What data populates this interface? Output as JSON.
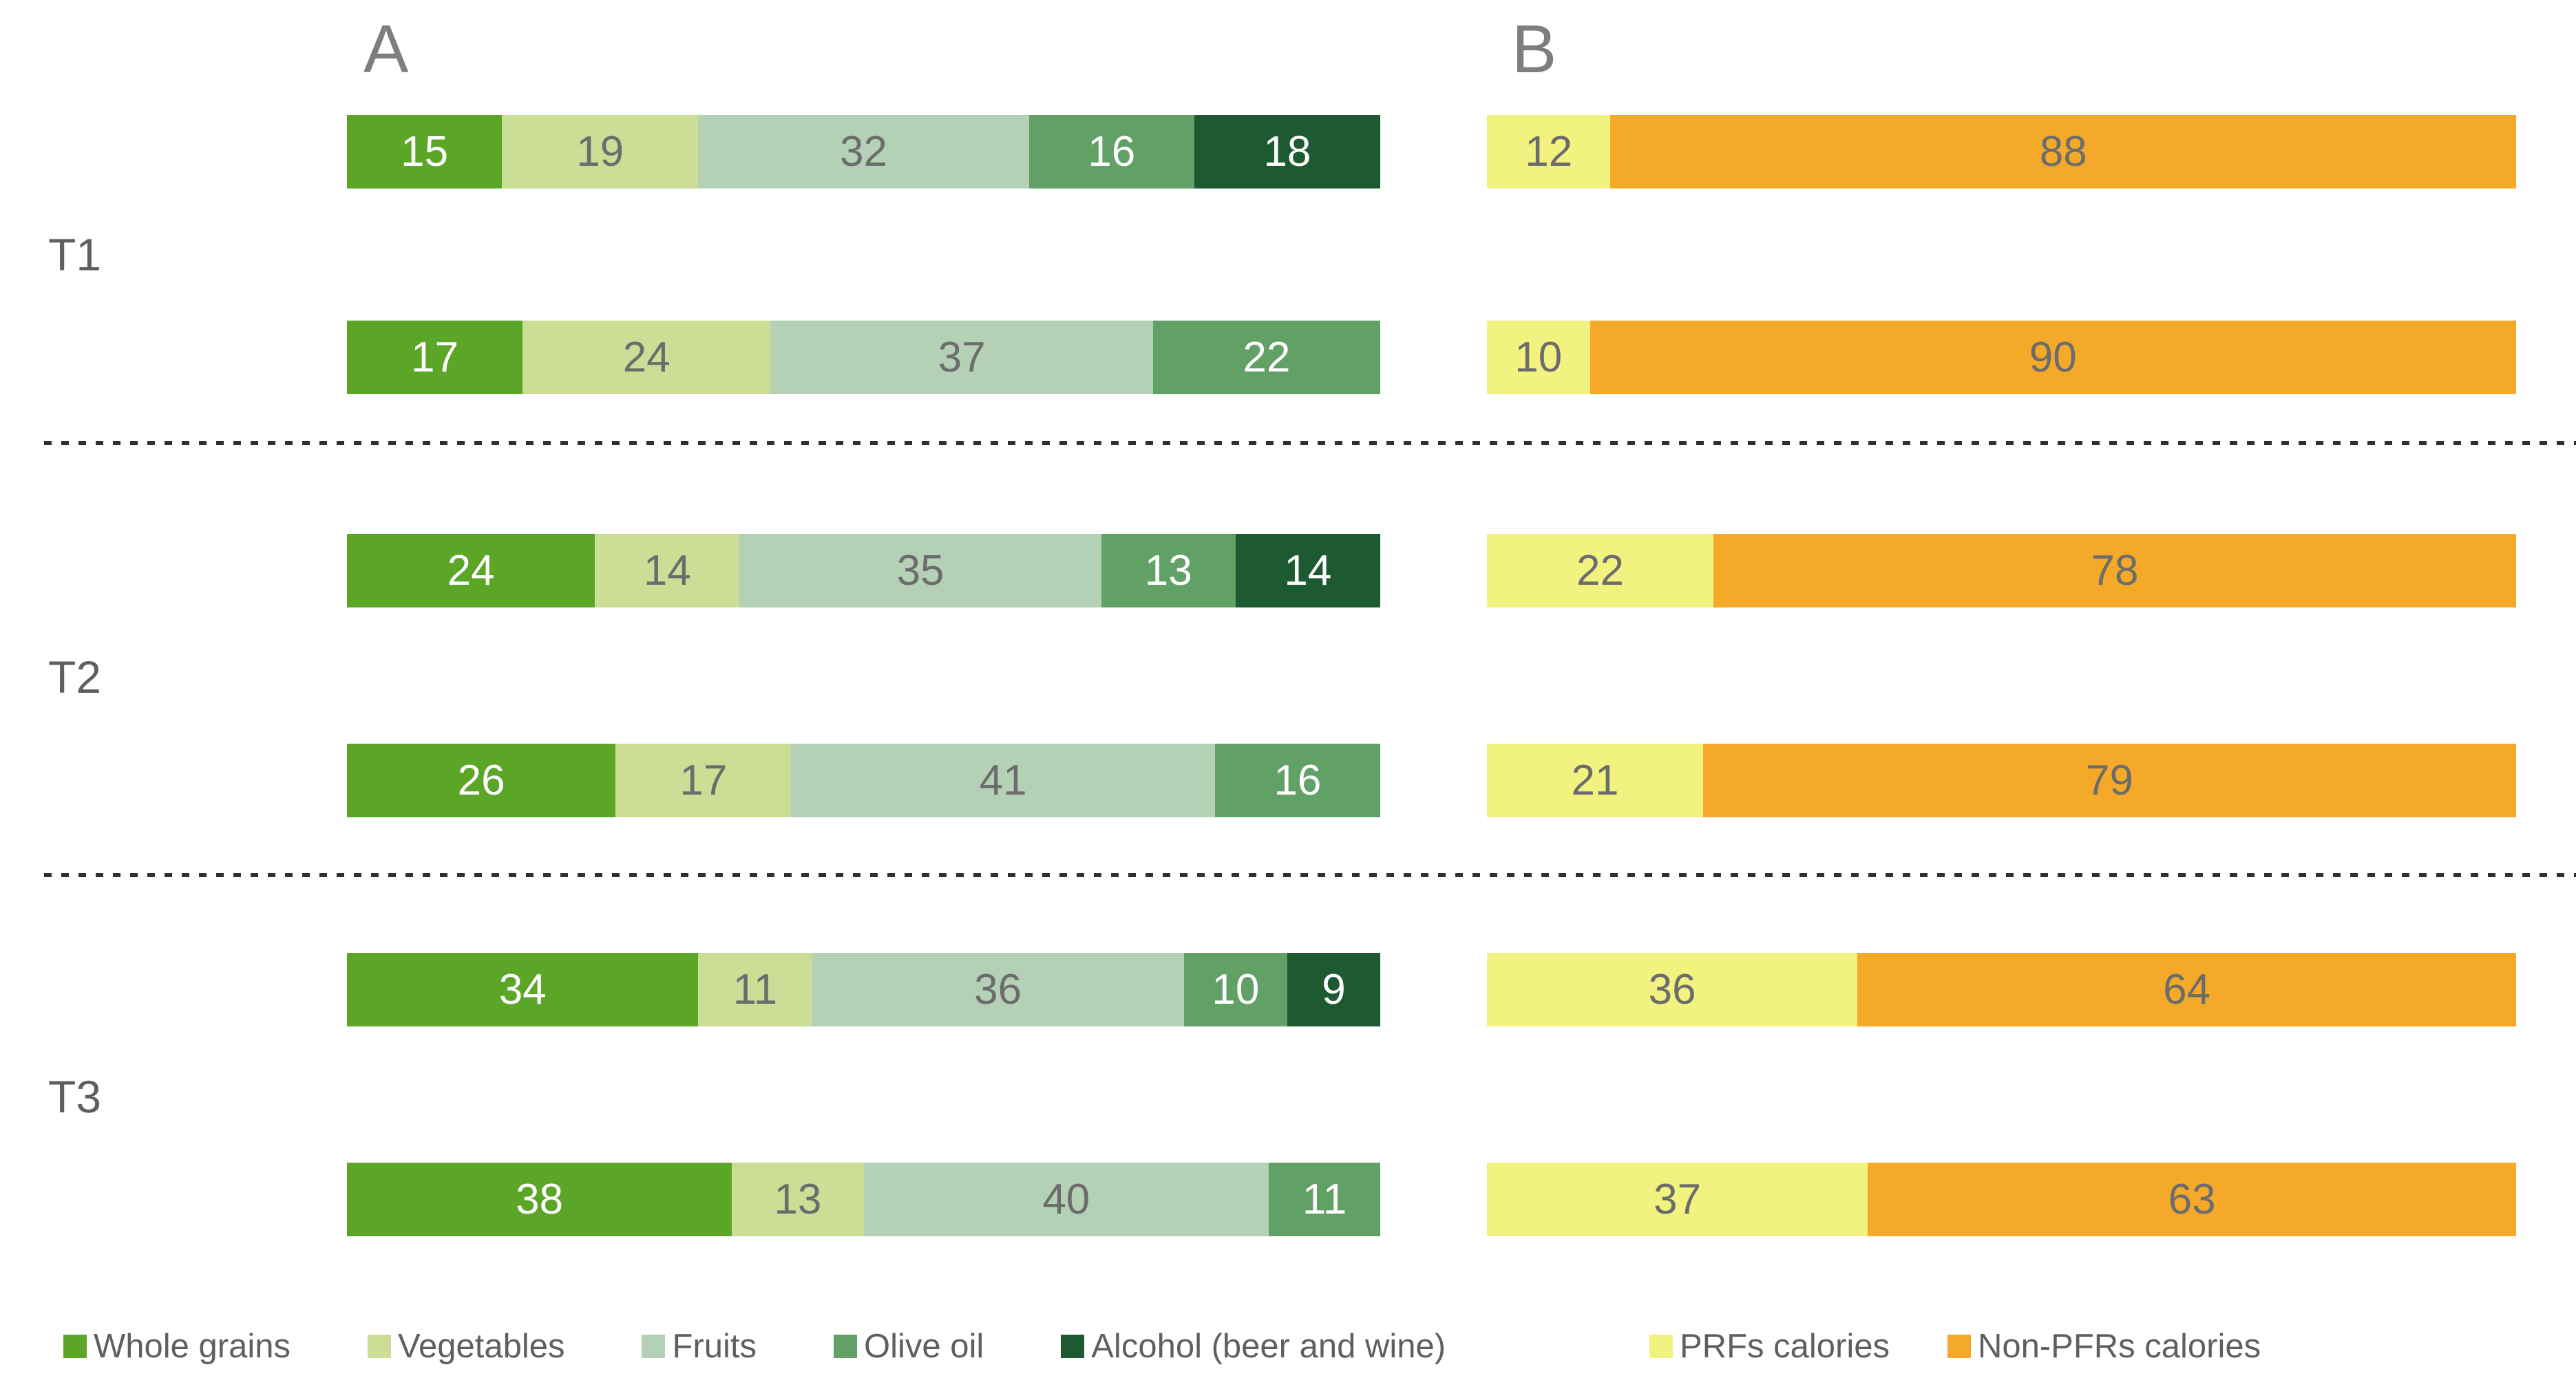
{
  "chart_data": {
    "type": "bar",
    "variant": "horizontal-stacked",
    "values_are_percent": true,
    "xlim": [
      0,
      100
    ],
    "grid": false,
    "legend_position": "bottom",
    "panels": [
      {
        "id": "A",
        "label": "A",
        "series_order": [
          "whole_grains",
          "vegetables",
          "fruits",
          "olive_oil",
          "alcohol"
        ]
      },
      {
        "id": "B",
        "label": "B",
        "series_order": [
          "prfs",
          "non_pfrs"
        ]
      }
    ],
    "series_meta": {
      "whole_grains": {
        "label": "Whole grains",
        "color": "#5BA527",
        "text_color": "#ffffff"
      },
      "vegetables": {
        "label": "Vegetables",
        "color": "#CCDD96",
        "text_color": "#6c6c6c"
      },
      "fruits": {
        "label": "Fruits",
        "color": "#B4D1B6",
        "text_color": "#6c6c6c"
      },
      "olive_oil": {
        "label": "Olive oil",
        "color": "#62A166",
        "text_color": "#ffffff"
      },
      "alcohol": {
        "label": "Alcohol (beer and wine)",
        "color": "#1D5A32",
        "text_color": "#ffffff"
      },
      "prfs": {
        "label": "PRFs calories",
        "color": "#F1F280",
        "text_color": "#6c6c6c"
      },
      "non_pfrs": {
        "label": "Non-PFRs calories",
        "color": "#F5A929",
        "text_color": "#6c6c6c"
      }
    },
    "groups": [
      {
        "label": "T1",
        "rows": [
          {
            "A": {
              "whole_grains": 15,
              "vegetables": 19,
              "fruits": 32,
              "olive_oil": 16,
              "alcohol": 18
            },
            "B": {
              "prfs": 12,
              "non_pfrs": 88
            }
          },
          {
            "A": {
              "whole_grains": 17,
              "vegetables": 24,
              "fruits": 37,
              "olive_oil": 22
            },
            "B": {
              "prfs": 10,
              "non_pfrs": 90
            }
          }
        ]
      },
      {
        "label": "T2",
        "rows": [
          {
            "A": {
              "whole_grains": 24,
              "vegetables": 14,
              "fruits": 35,
              "olive_oil": 13,
              "alcohol": 14
            },
            "B": {
              "prfs": 22,
              "non_pfrs": 78
            }
          },
          {
            "A": {
              "whole_grains": 26,
              "vegetables": 17,
              "fruits": 41,
              "olive_oil": 16
            },
            "B": {
              "prfs": 21,
              "non_pfrs": 79
            }
          }
        ]
      },
      {
        "label": "T3",
        "rows": [
          {
            "A": {
              "whole_grains": 34,
              "vegetables": 11,
              "fruits": 36,
              "olive_oil": 10,
              "alcohol": 9
            },
            "B": {
              "prfs": 36,
              "non_pfrs": 64
            }
          },
          {
            "A": {
              "whole_grains": 38,
              "vegetables": 13,
              "fruits": 40,
              "olive_oil": 11
            },
            "B": {
              "prfs": 37,
              "non_pfrs": 63
            }
          }
        ]
      }
    ]
  }
}
